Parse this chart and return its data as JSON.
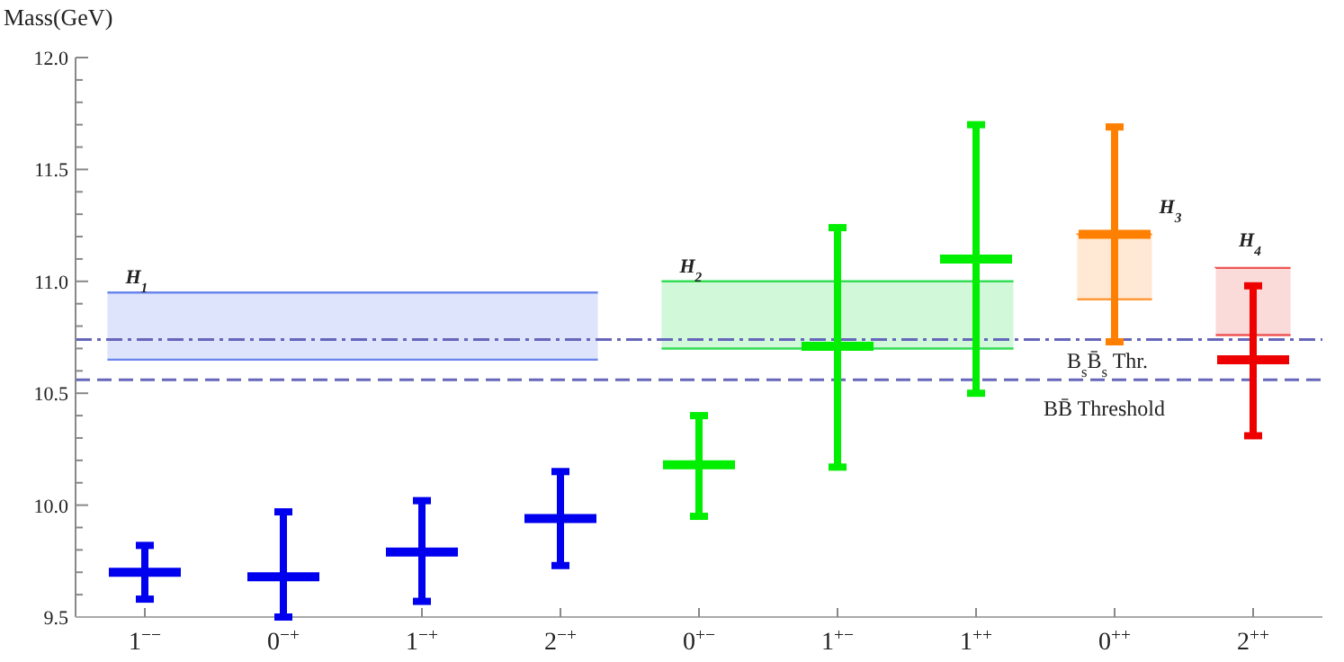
{
  "chart_data": {
    "type": "scatter",
    "ylabel": "Mass(GeV)",
    "categories": [
      "1$^{−−}$",
      "0$^{−+}$",
      "1$^{−+}$",
      "2$^{−+}$",
      "0$^{+−}$",
      "1$^{+−}$",
      "1$^{++}$",
      "0$^{++}$",
      "2$^{++}$"
    ],
    "ylim": [
      9.5,
      12.0
    ],
    "yticks": [
      9.5,
      {
        "value": 9.6,
        "label": null
      },
      {
        "value": 9.7,
        "label": null
      },
      {
        "value": 9.8,
        "label": null
      },
      {
        "value": 9.9,
        "label": null
      },
      {
        "value": 10.0,
        "label": "10.0"
      },
      {
        "value": 10.1,
        "label": null
      },
      {
        "value": 10.2,
        "label": null
      },
      {
        "value": 10.3,
        "label": null
      },
      {
        "value": 10.4,
        "label": null
      },
      10.5,
      {
        "value": 10.6,
        "label": null
      },
      {
        "value": 10.7,
        "label": null
      },
      {
        "value": 10.8,
        "label": null
      },
      {
        "value": 10.9,
        "label": null
      },
      {
        "value": 11.0,
        "label": "11.0"
      },
      {
        "value": 11.1,
        "label": null
      },
      {
        "value": 11.2,
        "label": null
      },
      {
        "value": 11.3,
        "label": null
      },
      {
        "value": 11.4,
        "label": null
      },
      11.5,
      {
        "value": 11.6,
        "label": null
      },
      {
        "value": 11.7,
        "label": null
      },
      {
        "value": 11.8,
        "label": null
      },
      {
        "value": 11.9,
        "label": null
      },
      {
        "value": 12.0,
        "label": "12.0"
      }
    ],
    "grid": false,
    "marker": "cross",
    "series": [
      {
        "color": "#0000ee",
        "values": [
          9.7,
          9.68,
          9.79,
          9.94,
          null,
          null,
          null,
          null,
          null
        ],
        "errors": [
          [
            9.58,
            9.82
          ],
          [
            9.5,
            9.97
          ],
          [
            9.57,
            10.02
          ],
          [
            9.73,
            10.15
          ],
          null,
          null,
          null,
          null,
          null
        ]
      },
      {
        "color": "#00ee00",
        "values": [
          null,
          null,
          null,
          null,
          10.18,
          10.71,
          11.1,
          null,
          null
        ],
        "errors": [
          null,
          null,
          null,
          null,
          [
            9.95,
            10.4
          ],
          [
            10.17,
            11.24
          ],
          [
            10.5,
            11.7
          ],
          null,
          null
        ]
      },
      {
        "color": "#ff8000",
        "values": [
          null,
          null,
          null,
          null,
          null,
          null,
          null,
          11.21,
          null
        ],
        "errors": [
          null,
          null,
          null,
          null,
          null,
          null,
          null,
          [
            10.73,
            11.69
          ],
          null
        ]
      },
      {
        "color": "#ee0000",
        "values": [
          null,
          null,
          null,
          null,
          null,
          null,
          null,
          null,
          10.65
        ],
        "errors": [
          null,
          null,
          null,
          null,
          null,
          null,
          null,
          null,
          [
            10.31,
            10.98
          ]
        ]
      }
    ],
    "bands": [
      {
        "axis": "y",
        "from": 10.65,
        "to": 10.95,
        "label": "H$_{1}$",
        "color": "#6a86ee"
      },
      {
        "axis": "y",
        "from": 10.7,
        "to": 11.0,
        "label": "H$_{2}$",
        "color": "#33dd55"
      },
      {
        "axis": "y",
        "from": 10.92,
        "to": 11.21,
        "label": "H$_{3}$",
        "color": "#ff9a3a"
      },
      {
        "axis": "y",
        "from": 10.76,
        "to": 11.06,
        "label": "H$_{4}$",
        "color": "#ee5555"
      }
    ],
    "ref_lines": [
      {
        "axis": "y",
        "value": 10.74,
        "label": "B$_{s}$B̄$_{s}$ Thr.",
        "color": "#6666bb",
        "line_style": "dotted"
      },
      {
        "axis": "y",
        "value": 10.56,
        "label": "BB̄ Threshold",
        "color": "#6666bb",
        "line_style": "dashed"
      }
    ]
  }
}
